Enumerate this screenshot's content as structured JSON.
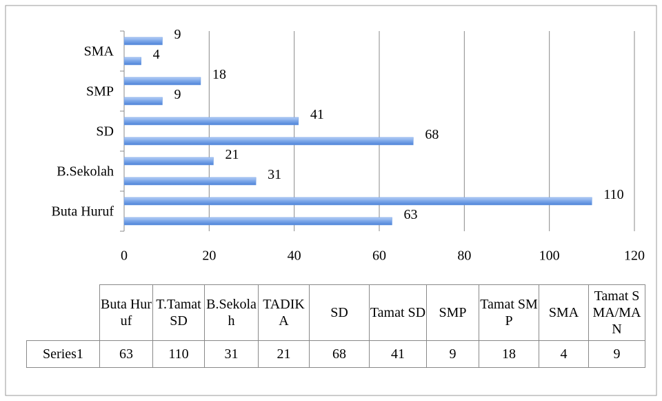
{
  "chart_data": {
    "type": "bar",
    "orientation": "horizontal",
    "categories": [
      "Buta Huruf",
      "T.Tamat SD",
      "B.Sekolah",
      "TADIKA",
      "SD",
      "Tamat SD",
      "SMP",
      "Tamat SMP",
      "SMA",
      "Tamat SMA/MAN"
    ],
    "series": [
      {
        "name": "Series1",
        "color": "#6a9ae3",
        "values": [
          63,
          110,
          31,
          21,
          68,
          41,
          9,
          18,
          4,
          9
        ]
      }
    ],
    "xlim": [
      0,
      120
    ],
    "xticks": [
      0,
      20,
      40,
      60,
      80,
      100,
      120
    ],
    "grid": true
  }
}
